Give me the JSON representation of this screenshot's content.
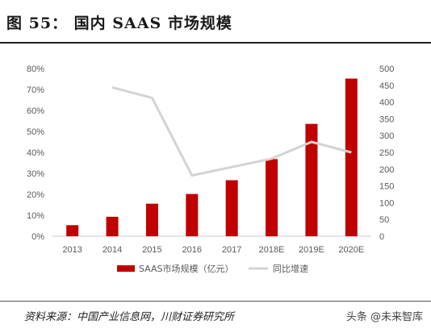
{
  "header": {
    "title": "图 55：  国内 SAAS 市场规模"
  },
  "footer": {
    "source": "资料来源：中国产业信息网，川财证券研究所",
    "watermark": "头条 @未来智库"
  },
  "colors": {
    "bar": "#c00000",
    "line": "#d3d3d3",
    "axis": "#c8c8c8",
    "tick_text": "#595959"
  },
  "chart_data": {
    "type": "bar",
    "categories": [
      "2013",
      "2014",
      "2015",
      "2016",
      "2017",
      "2018E",
      "2019E",
      "2020E"
    ],
    "series": [
      {
        "name": "SAAS市场规模（亿元）",
        "type": "bar",
        "axis": "right",
        "values": [
          33,
          58,
          97,
          126,
          167,
          230,
          335,
          470
        ]
      },
      {
        "name": "同比增速",
        "type": "line",
        "axis": "left",
        "values": [
          null,
          0.71,
          0.66,
          0.29,
          0.33,
          0.37,
          0.45,
          0.4
        ]
      }
    ],
    "left_axis": {
      "min": 0,
      "max": 0.8,
      "ticks": [
        "0%",
        "10%",
        "20%",
        "30%",
        "40%",
        "50%",
        "60%",
        "70%",
        "80%"
      ]
    },
    "right_axis": {
      "min": 0,
      "max": 500,
      "ticks": [
        "0",
        "50",
        "100",
        "150",
        "200",
        "250",
        "300",
        "350",
        "400",
        "450",
        "500"
      ]
    },
    "legend_position": "bottom"
  }
}
